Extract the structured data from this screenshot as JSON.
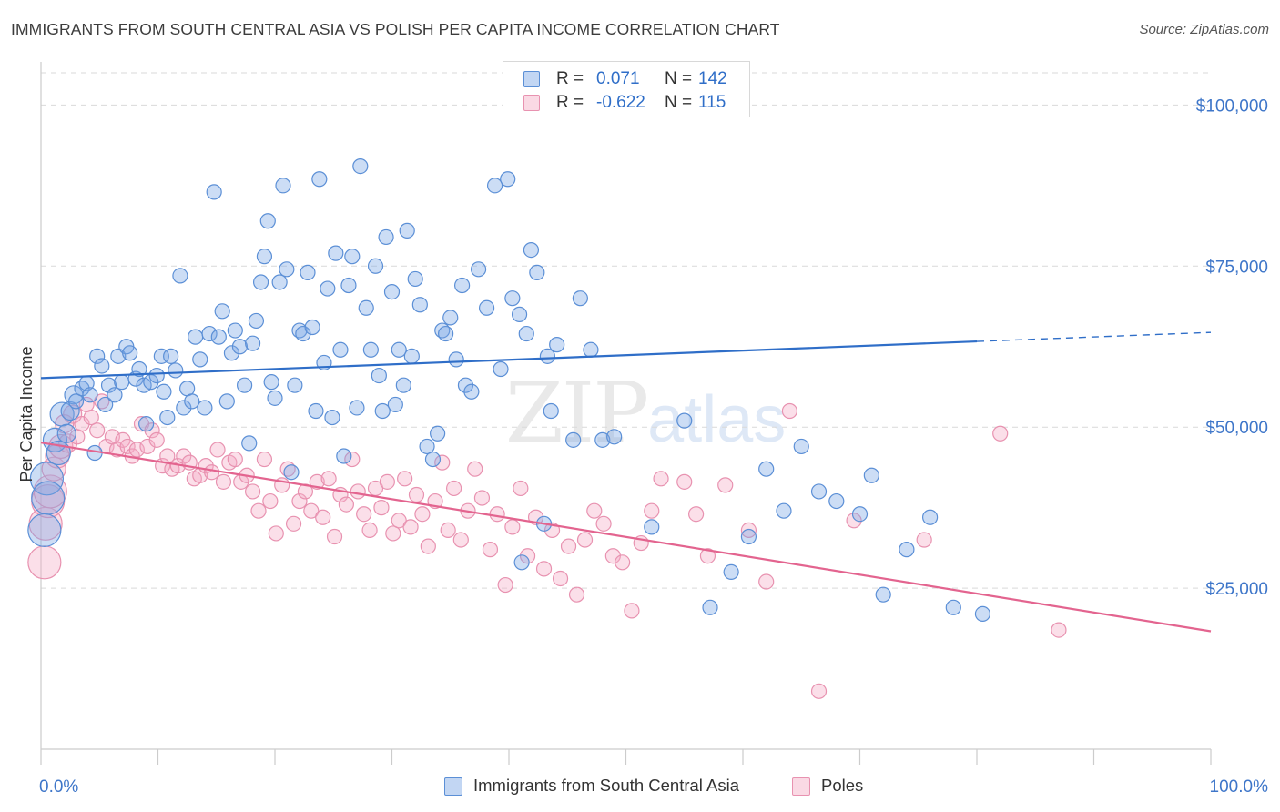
{
  "title": "IMMIGRANTS FROM SOUTH CENTRAL ASIA VS POLISH PER CAPITA INCOME CORRELATION CHART",
  "source": "Source: ZipAtlas.com",
  "watermark": {
    "part1": "ZIP",
    "part2": "atlas"
  },
  "legend_top": {
    "rows": [
      {
        "r_label": "R =",
        "r_value": "0.071",
        "n_label": "N =",
        "n_value": "142"
      },
      {
        "r_label": "R =",
        "r_value": "-0.622",
        "n_label": "N =",
        "n_value": "115"
      }
    ]
  },
  "legend_bottom": {
    "items": [
      {
        "label": "Immigrants from South Central Asia"
      },
      {
        "label": "Poles"
      }
    ]
  },
  "colors": {
    "blue_stroke": "#5b8fd6",
    "blue_fill": "rgba(120,165,228,0.38)",
    "blue_line": "#2f6ec8",
    "pink_stroke": "#e892b0",
    "pink_fill": "rgba(244,170,196,0.38)",
    "pink_line": "#e3648f",
    "tick_label": "#3e76c9",
    "grid": "#d9d9d9",
    "axis": "#cccccc"
  },
  "chart_data": {
    "type": "scatter",
    "title": "IMMIGRANTS FROM SOUTH CENTRAL ASIA VS POLISH PER CAPITA INCOME CORRELATION CHART",
    "xlabel": "",
    "ylabel": "Per Capita Income",
    "xlim": [
      0,
      100
    ],
    "ylim": [
      0,
      105000
    ],
    "x_tick_labels": [
      "0.0%",
      "100.0%"
    ],
    "y_ticks": [
      25000,
      50000,
      75000,
      100000
    ],
    "y_tick_labels": [
      "$25,000",
      "$50,000",
      "$75,000",
      "$100,000"
    ],
    "grid": true,
    "legend_placement": "top-center",
    "series": [
      {
        "name": "Immigrants from South Central Asia",
        "color": "#5b8fd6",
        "R": 0.071,
        "N": 142,
        "trend": {
          "x": [
            0,
            80
          ],
          "y": [
            57600,
            63300
          ],
          "dashed_extension": {
            "x": [
              80,
              100
            ],
            "y": [
              63300,
              64700
            ]
          }
        },
        "points": [
          [
            0.3,
            34000
          ],
          [
            0.5,
            42000
          ],
          [
            0.6,
            39000
          ],
          [
            1.2,
            48000
          ],
          [
            1.5,
            46000
          ],
          [
            1.8,
            52000
          ],
          [
            2.2,
            49000
          ],
          [
            2.5,
            52500
          ],
          [
            2.8,
            55000
          ],
          [
            3.0,
            54000
          ],
          [
            3.5,
            56000
          ],
          [
            3.9,
            56800
          ],
          [
            4.2,
            55000
          ],
          [
            4.6,
            46000
          ],
          [
            4.8,
            61000
          ],
          [
            5.2,
            59500
          ],
          [
            5.5,
            53500
          ],
          [
            5.8,
            56500
          ],
          [
            6.3,
            55000
          ],
          [
            6.6,
            61000
          ],
          [
            6.9,
            57000
          ],
          [
            7.3,
            62500
          ],
          [
            7.6,
            61500
          ],
          [
            8.1,
            57500
          ],
          [
            8.4,
            59000
          ],
          [
            8.8,
            56500
          ],
          [
            9.0,
            50500
          ],
          [
            9.4,
            57000
          ],
          [
            9.9,
            58000
          ],
          [
            10.3,
            61000
          ],
          [
            10.5,
            55500
          ],
          [
            10.8,
            51500
          ],
          [
            11.1,
            61000
          ],
          [
            11.5,
            58800
          ],
          [
            11.9,
            73500
          ],
          [
            12.2,
            53000
          ],
          [
            12.5,
            56000
          ],
          [
            12.9,
            54000
          ],
          [
            13.2,
            64000
          ],
          [
            13.6,
            60500
          ],
          [
            14.0,
            53000
          ],
          [
            14.4,
            64500
          ],
          [
            14.8,
            86500
          ],
          [
            15.2,
            64000
          ],
          [
            15.5,
            68000
          ],
          [
            15.9,
            54000
          ],
          [
            16.3,
            61500
          ],
          [
            16.6,
            65000
          ],
          [
            17.0,
            62500
          ],
          [
            17.4,
            56500
          ],
          [
            17.8,
            47500
          ],
          [
            18.1,
            63000
          ],
          [
            18.4,
            66500
          ],
          [
            18.8,
            72500
          ],
          [
            19.1,
            76500
          ],
          [
            19.4,
            82000
          ],
          [
            19.7,
            57000
          ],
          [
            20.0,
            54500
          ],
          [
            20.4,
            72500
          ],
          [
            20.7,
            87500
          ],
          [
            21.0,
            74500
          ],
          [
            21.4,
            43000
          ],
          [
            21.7,
            56500
          ],
          [
            22.1,
            65000
          ],
          [
            22.4,
            64500
          ],
          [
            22.8,
            74000
          ],
          [
            23.2,
            65500
          ],
          [
            23.5,
            52500
          ],
          [
            23.8,
            88500
          ],
          [
            24.2,
            60000
          ],
          [
            24.5,
            71500
          ],
          [
            24.9,
            51500
          ],
          [
            25.2,
            77000
          ],
          [
            25.6,
            62000
          ],
          [
            25.9,
            45500
          ],
          [
            26.3,
            72000
          ],
          [
            26.6,
            76500
          ],
          [
            27.0,
            53000
          ],
          [
            27.3,
            90500
          ],
          [
            27.8,
            68500
          ],
          [
            28.2,
            62000
          ],
          [
            28.6,
            75000
          ],
          [
            28.9,
            58000
          ],
          [
            29.2,
            52500
          ],
          [
            29.5,
            79500
          ],
          [
            30.0,
            71000
          ],
          [
            30.3,
            53500
          ],
          [
            30.6,
            62000
          ],
          [
            31.0,
            56500
          ],
          [
            31.3,
            80500
          ],
          [
            31.7,
            61000
          ],
          [
            32.0,
            73000
          ],
          [
            32.4,
            69000
          ],
          [
            33.0,
            47000
          ],
          [
            33.5,
            45000
          ],
          [
            33.9,
            49000
          ],
          [
            34.3,
            65000
          ],
          [
            34.6,
            64500
          ],
          [
            35.0,
            67000
          ],
          [
            35.5,
            60500
          ],
          [
            36.0,
            72000
          ],
          [
            36.3,
            56500
          ],
          [
            36.8,
            55500
          ],
          [
            37.4,
            74500
          ],
          [
            38.1,
            68500
          ],
          [
            38.8,
            87500
          ],
          [
            39.3,
            59000
          ],
          [
            39.9,
            88500
          ],
          [
            40.3,
            70000
          ],
          [
            40.9,
            67500
          ],
          [
            41.1,
            29000
          ],
          [
            41.5,
            64500
          ],
          [
            41.9,
            77500
          ],
          [
            42.4,
            74000
          ],
          [
            43.0,
            35000
          ],
          [
            43.3,
            61000
          ],
          [
            43.6,
            52500
          ],
          [
            44.1,
            62800
          ],
          [
            45.5,
            48000
          ],
          [
            46.1,
            70000
          ],
          [
            47.0,
            62000
          ],
          [
            48.0,
            48000
          ],
          [
            49.0,
            48500
          ],
          [
            52.2,
            34500
          ],
          [
            55.0,
            51000
          ],
          [
            57.2,
            22000
          ],
          [
            59.0,
            27500
          ],
          [
            60.5,
            33000
          ],
          [
            62.0,
            43500
          ],
          [
            63.5,
            37000
          ],
          [
            65.0,
            47000
          ],
          [
            66.5,
            40000
          ],
          [
            68.0,
            38500
          ],
          [
            70.0,
            36500
          ],
          [
            72.0,
            24000
          ],
          [
            74.0,
            31000
          ],
          [
            76.0,
            36000
          ],
          [
            78.0,
            22000
          ],
          [
            80.5,
            21000
          ],
          [
            71.0,
            42500
          ]
        ]
      },
      {
        "name": "Poles",
        "color": "#e892b0",
        "R": -0.622,
        "N": 115,
        "trend": {
          "x": [
            0,
            100
          ],
          "y": [
            47600,
            18300
          ]
        },
        "points": [
          [
            0.3,
            29000
          ],
          [
            0.4,
            35000
          ],
          [
            0.6,
            38500
          ],
          [
            0.8,
            40000
          ],
          [
            1.1,
            43500
          ],
          [
            1.4,
            45500
          ],
          [
            1.7,
            47000
          ],
          [
            2.0,
            50500
          ],
          [
            2.3,
            47500
          ],
          [
            2.7,
            52000
          ],
          [
            3.1,
            48500
          ],
          [
            3.5,
            50500
          ],
          [
            3.9,
            53500
          ],
          [
            4.3,
            51500
          ],
          [
            4.8,
            49500
          ],
          [
            5.2,
            54000
          ],
          [
            5.6,
            47000
          ],
          [
            6.1,
            48500
          ],
          [
            6.5,
            46500
          ],
          [
            7.0,
            48000
          ],
          [
            7.4,
            47000
          ],
          [
            7.8,
            45500
          ],
          [
            8.2,
            46500
          ],
          [
            8.6,
            50500
          ],
          [
            9.1,
            47000
          ],
          [
            9.5,
            49500
          ],
          [
            9.9,
            48000
          ],
          [
            10.4,
            44000
          ],
          [
            10.8,
            45500
          ],
          [
            11.2,
            43500
          ],
          [
            11.7,
            44000
          ],
          [
            12.2,
            45500
          ],
          [
            12.7,
            44500
          ],
          [
            13.1,
            42000
          ],
          [
            13.6,
            42500
          ],
          [
            14.1,
            44000
          ],
          [
            14.6,
            43000
          ],
          [
            15.1,
            46500
          ],
          [
            15.6,
            41500
          ],
          [
            16.1,
            44500
          ],
          [
            16.6,
            45000
          ],
          [
            17.1,
            41500
          ],
          [
            17.6,
            42500
          ],
          [
            18.1,
            40000
          ],
          [
            18.6,
            37000
          ],
          [
            19.1,
            45000
          ],
          [
            19.6,
            38500
          ],
          [
            20.1,
            33500
          ],
          [
            20.6,
            41000
          ],
          [
            21.1,
            43500
          ],
          [
            21.6,
            35000
          ],
          [
            22.1,
            38500
          ],
          [
            22.6,
            40000
          ],
          [
            23.1,
            37000
          ],
          [
            23.6,
            41500
          ],
          [
            24.1,
            36000
          ],
          [
            24.6,
            42000
          ],
          [
            25.1,
            33000
          ],
          [
            25.6,
            39500
          ],
          [
            26.1,
            38000
          ],
          [
            26.6,
            45000
          ],
          [
            27.1,
            40000
          ],
          [
            27.6,
            36500
          ],
          [
            28.1,
            34000
          ],
          [
            28.6,
            40500
          ],
          [
            29.1,
            37500
          ],
          [
            29.6,
            41500
          ],
          [
            30.1,
            33500
          ],
          [
            30.6,
            35500
          ],
          [
            31.1,
            42000
          ],
          [
            31.6,
            34500
          ],
          [
            32.1,
            39500
          ],
          [
            32.6,
            36500
          ],
          [
            33.1,
            31500
          ],
          [
            33.7,
            38500
          ],
          [
            34.3,
            44500
          ],
          [
            34.8,
            34000
          ],
          [
            35.3,
            40500
          ],
          [
            35.9,
            32500
          ],
          [
            36.5,
            37000
          ],
          [
            37.1,
            43500
          ],
          [
            37.7,
            39000
          ],
          [
            38.4,
            31000
          ],
          [
            39.0,
            36500
          ],
          [
            39.7,
            25500
          ],
          [
            40.3,
            34500
          ],
          [
            41.0,
            40500
          ],
          [
            41.6,
            30000
          ],
          [
            42.3,
            36000
          ],
          [
            43.0,
            28000
          ],
          [
            43.7,
            34000
          ],
          [
            44.4,
            26500
          ],
          [
            45.1,
            31500
          ],
          [
            45.8,
            24000
          ],
          [
            46.5,
            32500
          ],
          [
            47.3,
            37000
          ],
          [
            48.1,
            35000
          ],
          [
            48.9,
            30000
          ],
          [
            49.7,
            29000
          ],
          [
            50.5,
            21500
          ],
          [
            51.3,
            32000
          ],
          [
            52.2,
            37000
          ],
          [
            53.0,
            42000
          ],
          [
            55.0,
            41500
          ],
          [
            56.0,
            36500
          ],
          [
            57.0,
            30000
          ],
          [
            58.5,
            41000
          ],
          [
            60.5,
            34000
          ],
          [
            62.0,
            26000
          ],
          [
            64.0,
            52500
          ],
          [
            66.5,
            9000
          ],
          [
            69.5,
            35500
          ],
          [
            75.5,
            32500
          ],
          [
            82.0,
            49000
          ],
          [
            87.0,
            18500
          ]
        ]
      }
    ]
  }
}
